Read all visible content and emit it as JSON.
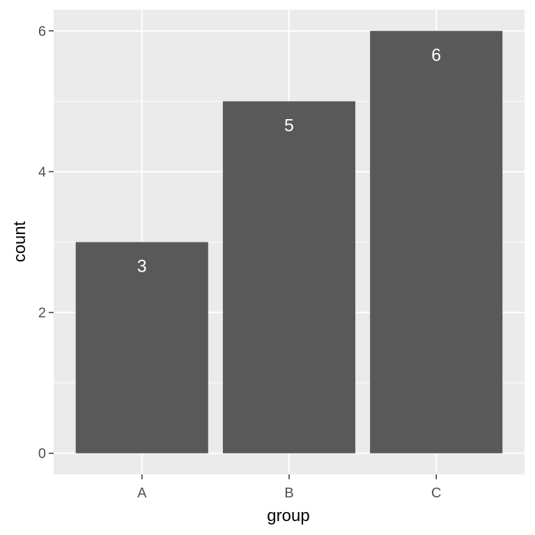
{
  "chart_data": {
    "type": "bar",
    "title": "",
    "xlabel": "group",
    "ylabel": "count",
    "categories": [
      "A",
      "B",
      "C"
    ],
    "values": [
      3,
      5,
      6
    ],
    "data_labels": [
      "3",
      "5",
      "6"
    ],
    "ylim": [
      -0.3,
      6.3
    ],
    "y_ticks": [
      0,
      2,
      4,
      6
    ],
    "y_tick_labels": [
      "0",
      "2",
      "4",
      "6"
    ],
    "grid": true,
    "legend": "none",
    "colors": {
      "panel_background": "#ebebeb",
      "grid_major": "#ffffff",
      "bar_fill": "#595959",
      "bar_label": "#ffffff",
      "tick_label": "#4d4d4d",
      "axis_title": "#000000"
    }
  }
}
